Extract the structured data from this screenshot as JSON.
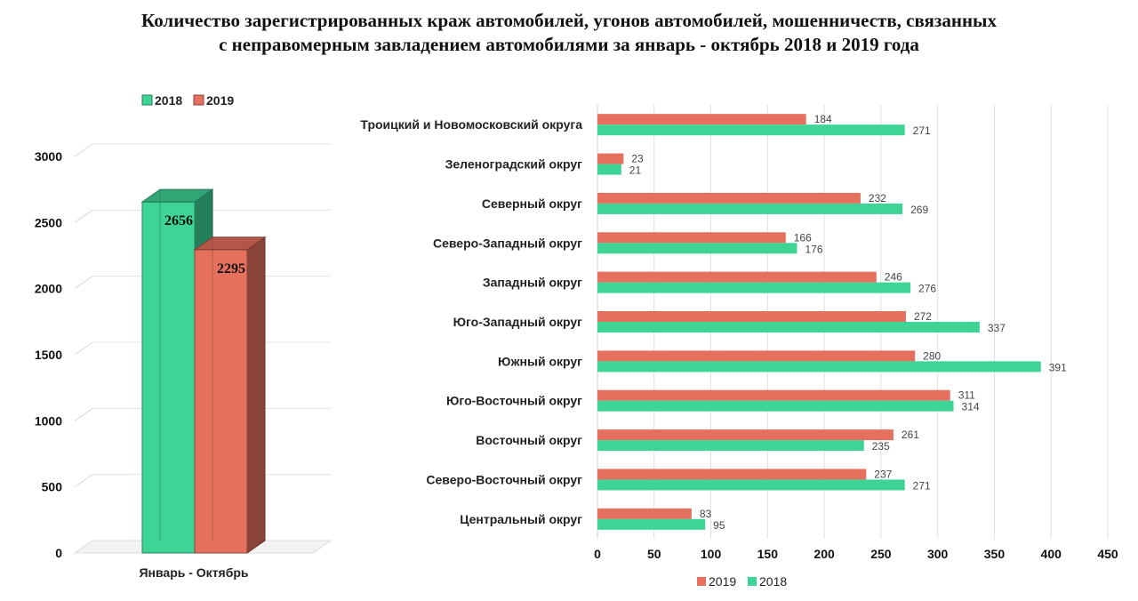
{
  "title": {
    "line1": "Количество зарегистрированных краж автомобилей, угонов автомобилей, мошенничеств, связанных",
    "line2": "с неправомерным завладением автомобилями за январь - октябрь 2018 и 2019 года"
  },
  "colors": {
    "c2018": "#3dd496",
    "c2019": "#e5705d"
  },
  "chart_data": [
    {
      "type": "bar",
      "categories": [
        "Январь - Октябрь"
      ],
      "series": [
        {
          "name": "2018",
          "values": [
            2656
          ]
        },
        {
          "name": "2019",
          "values": [
            2295
          ]
        }
      ],
      "ylim": [
        0,
        3000
      ],
      "yticks": [
        0,
        500,
        1000,
        1500,
        2000,
        2500,
        3000
      ],
      "legend": "top-left",
      "grid": true
    },
    {
      "type": "bar",
      "orientation": "horizontal",
      "categories": [
        "Троицкий и Новомосковский округа",
        "Зеленоградский округ",
        "Северный округ",
        "Северо-Западный округ",
        "Западный округ",
        "Юго-Западный округ",
        "Южный округ",
        "Юго-Восточный округ",
        "Восточный округ",
        "Северо-Восточный округ",
        "Центральный округ"
      ],
      "series": [
        {
          "name": "2019",
          "values": [
            184,
            23,
            232,
            166,
            246,
            272,
            280,
            311,
            261,
            237,
            83
          ]
        },
        {
          "name": "2018",
          "values": [
            271,
            21,
            269,
            176,
            276,
            337,
            391,
            314,
            235,
            271,
            95
          ]
        }
      ],
      "xlim": [
        0,
        450
      ],
      "xticks": [
        0,
        50,
        100,
        150,
        200,
        250,
        300,
        350,
        400,
        450
      ],
      "legend": "bottom",
      "grid": true
    }
  ]
}
